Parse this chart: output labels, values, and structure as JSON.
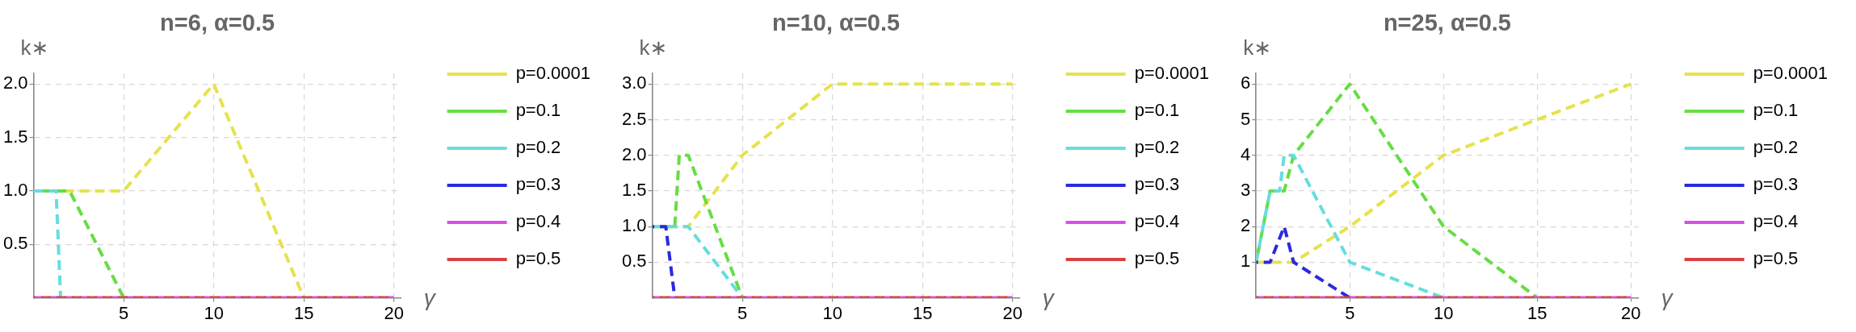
{
  "chart_data": [
    {
      "type": "line",
      "title": "n=6, α=0.5",
      "xlabel": "γ",
      "ylabel": "k∗",
      "xlim": [
        0,
        20.4
      ],
      "ylim": [
        0,
        2.1
      ],
      "xticks": [
        5,
        10,
        15,
        20
      ],
      "yticks": [
        0.5,
        {
          "value": 1,
          "label": "1.0"
        },
        1.5,
        {
          "value": 2,
          "label": "2.0"
        }
      ],
      "grid": true,
      "legend": "right",
      "line_style": "dashed",
      "series": [
        {
          "name": "p=0.0001",
          "color": "#e6e24c",
          "x": [
            0,
            5,
            10,
            15
          ],
          "values": [
            1,
            1,
            2,
            0
          ]
        },
        {
          "name": "p=0.1",
          "color": "#66dd44",
          "x": [
            0,
            2,
            5
          ],
          "values": [
            1,
            1,
            0
          ]
        },
        {
          "name": "p=0.2",
          "color": "#66dddd",
          "x": [
            0,
            1.25,
            1.5
          ],
          "values": [
            1,
            1,
            0
          ]
        },
        {
          "name": "p=0.3",
          "color": "#2a2ae0"
        },
        {
          "name": "p=0.4",
          "color": "#d94ee6",
          "x": [
            0,
            20
          ],
          "values": [
            0,
            0
          ]
        },
        {
          "name": "p=0.5",
          "color": "#d94040",
          "x": [
            0,
            20
          ],
          "values": [
            0,
            0
          ]
        }
      ]
    },
    {
      "type": "line",
      "title": "n=10, α=0.5",
      "xlabel": "γ",
      "ylabel": "k∗",
      "xlim": [
        0,
        20.4
      ],
      "ylim": [
        0,
        3.15
      ],
      "xticks": [
        5,
        10,
        15,
        20
      ],
      "yticks": [
        0.5,
        {
          "value": 1,
          "label": "1.0"
        },
        1.5,
        {
          "value": 2,
          "label": "2.0"
        },
        2.5,
        {
          "value": 3,
          "label": "3.0"
        }
      ],
      "grid": true,
      "legend": "right",
      "line_style": "dashed",
      "series": [
        {
          "name": "p=0.0001",
          "color": "#e6e24c",
          "x": [
            0,
            2,
            5,
            10,
            20
          ],
          "values": [
            1,
            1,
            2,
            3,
            3
          ]
        },
        {
          "name": "p=0.1",
          "color": "#66dd44",
          "x": [
            0,
            1.25,
            1.5,
            2,
            5
          ],
          "values": [
            1,
            1,
            2,
            2,
            0
          ]
        },
        {
          "name": "p=0.2",
          "color": "#66dddd",
          "x": [
            0,
            2,
            5
          ],
          "values": [
            1,
            1,
            0
          ]
        },
        {
          "name": "p=0.3",
          "color": "#2a2ae0",
          "x": [
            0,
            0.75,
            1.25
          ],
          "values": [
            1,
            1,
            0
          ]
        },
        {
          "name": "p=0.4",
          "color": "#d94ee6",
          "x": [
            0,
            20
          ],
          "values": [
            0,
            0
          ]
        },
        {
          "name": "p=0.5",
          "color": "#d94040",
          "x": [
            0,
            20
          ],
          "values": [
            0,
            0
          ]
        }
      ]
    },
    {
      "type": "line",
      "title": "n=25, α=0.5",
      "xlabel": "γ",
      "ylabel": "k∗",
      "xlim": [
        0,
        20.4
      ],
      "ylim": [
        0,
        6.3
      ],
      "xticks": [
        5,
        10,
        15,
        20
      ],
      "yticks": [
        1,
        2,
        3,
        4,
        5,
        6
      ],
      "grid": true,
      "legend": "right",
      "line_style": "dashed",
      "series": [
        {
          "name": "p=0.0001",
          "color": "#e6e24c",
          "x": [
            0,
            2,
            5,
            10,
            15,
            20
          ],
          "values": [
            1,
            1,
            2,
            4,
            5,
            6
          ]
        },
        {
          "name": "p=0.1",
          "color": "#66dd44",
          "x": [
            0,
            0.75,
            1.5,
            2,
            5,
            10,
            15
          ],
          "values": [
            1,
            3,
            3,
            4,
            6,
            2,
            0
          ]
        },
        {
          "name": "p=0.2",
          "color": "#66dddd",
          "x": [
            0,
            0.75,
            1.25,
            1.5,
            2,
            5,
            10
          ],
          "values": [
            1,
            3,
            3,
            4,
            4,
            1,
            0
          ]
        },
        {
          "name": "p=0.3",
          "color": "#2a2ae0",
          "x": [
            0,
            0.75,
            1.5,
            2,
            5
          ],
          "values": [
            1,
            1,
            2,
            1,
            0
          ]
        },
        {
          "name": "p=0.4",
          "color": "#d94ee6",
          "x": [
            0,
            20
          ],
          "values": [
            0,
            0
          ]
        },
        {
          "name": "p=0.5",
          "color": "#d94040",
          "x": [
            0,
            20
          ],
          "values": [
            0,
            0
          ]
        }
      ]
    }
  ]
}
